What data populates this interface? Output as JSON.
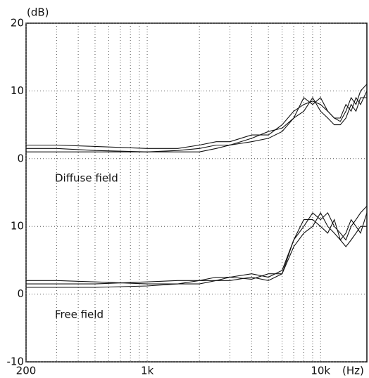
{
  "chart_data": {
    "type": "line",
    "y_label": "(dB)",
    "x_label": "(Hz)",
    "annotations": [
      "Diffuse field",
      "Free field"
    ],
    "log_x": true,
    "xlim": [
      200,
      18500
    ],
    "xticks": [
      200,
      {
        "value": 1000,
        "label": "1k"
      },
      {
        "value": 10000,
        "label": "10k"
      }
    ],
    "xgrid": [
      300,
      400,
      500,
      600,
      700,
      800,
      900,
      2000,
      3000,
      4000,
      5000,
      6000,
      7000,
      8000,
      9000
    ],
    "ylim": [
      -10,
      40
    ],
    "yticks": [
      -10,
      0,
      10,
      {
        "value": 20,
        "label": "0"
      },
      {
        "value": 30,
        "label": "10"
      },
      {
        "value": 40,
        "label": "20"
      }
    ],
    "grid": true,
    "x": [
      200,
      300,
      500,
      1000,
      1500,
      2000,
      2500,
      3000,
      4000,
      5000,
      6000,
      7000,
      8000,
      9000,
      10000,
      11000,
      12000,
      13000,
      14000,
      15000,
      16000,
      17000,
      18500
    ],
    "series": [
      {
        "color": "#111111",
        "values": [
          22,
          22,
          21.8,
          21.5,
          21.5,
          22,
          22.5,
          22.5,
          23.5,
          23.5,
          25,
          27,
          28,
          28.5,
          28,
          27,
          26,
          25.5,
          27,
          29,
          28,
          30,
          31
        ]
      },
      {
        "color": "#111111",
        "values": [
          21,
          21,
          21,
          21,
          21,
          21,
          21.5,
          22,
          22.5,
          23,
          24,
          26,
          27,
          29,
          27,
          26,
          25,
          25,
          26,
          28,
          27,
          29,
          29
        ]
      },
      {
        "color": "#111111",
        "values": [
          21.5,
          21.5,
          21.2,
          21,
          21.2,
          21.5,
          22,
          22,
          23,
          24,
          24.5,
          26,
          29,
          28,
          29,
          27,
          26,
          26,
          28,
          27,
          29,
          28,
          30
        ]
      },
      {
        "color": "#111111",
        "values": [
          1.5,
          1.5,
          1.5,
          1.8,
          2,
          2,
          2.5,
          2.5,
          2.2,
          3,
          3,
          8,
          10,
          12,
          11,
          12,
          10,
          9,
          8,
          10,
          11,
          12,
          13
        ]
      },
      {
        "color": "#111111",
        "values": [
          1,
          1,
          1,
          1.2,
          1.5,
          1.5,
          2,
          2,
          2.5,
          2,
          3,
          7,
          9,
          10,
          12,
          10,
          9,
          8,
          7,
          8,
          9,
          10,
          10
        ]
      },
      {
        "color": "#111111",
        "values": [
          2,
          2,
          1.8,
          1.5,
          1.5,
          2,
          2,
          2.5,
          3,
          2.5,
          3.5,
          8,
          11,
          11,
          10,
          9,
          11,
          8,
          9,
          11,
          10,
          9,
          12
        ]
      }
    ]
  }
}
